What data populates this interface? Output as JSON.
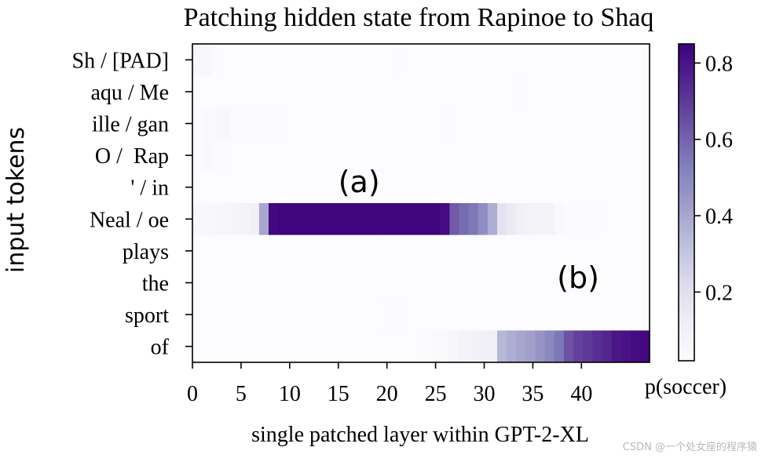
{
  "chart_data": {
    "type": "heatmap",
    "title": "Patching hidden state from Rapinoe to Shaq",
    "xlabel": "single patched layer within GPT-2-XL",
    "ylabel": "input tokens",
    "x_tick_labels": [
      "0",
      "5",
      "10",
      "15",
      "20",
      "25",
      "30",
      "35",
      "40"
    ],
    "x_ticks": [
      0,
      5,
      10,
      15,
      20,
      25,
      30,
      35,
      40
    ],
    "x_range": [
      0,
      47
    ],
    "rows": [
      "Sh / [PAD]",
      "aqu / Me",
      "ille / gan",
      "O /  Rap",
      "' / in",
      "Neal / oe",
      "plays",
      "the",
      "sport",
      "of"
    ],
    "colorbar": {
      "label": "p(soccer)",
      "tick_labels": [
        "0.2",
        "0.4",
        "0.6",
        "0.8"
      ],
      "ticks": [
        0.2,
        0.4,
        0.6,
        0.8
      ],
      "range": [
        0.02,
        0.85
      ],
      "colormap": "Purples",
      "color_low": "#fcfbfd",
      "color_high": "#3f007d"
    },
    "annotations": [
      {
        "text": "(a)",
        "layer": 17,
        "row": "Neal / oe"
      },
      {
        "text": "(b)",
        "layer": 40,
        "row": "sport"
      }
    ],
    "values": [
      [
        0.05,
        0.05,
        0.03,
        0.02,
        0.02,
        0.02,
        0.02,
        0.02,
        0.02,
        0.02,
        0.02,
        0.02,
        0.02,
        0.02,
        0.02,
        0.02,
        0.02,
        0.02,
        0.02,
        0.02,
        0.02,
        0.03,
        0.02,
        0.02,
        0.02,
        0.02,
        0.02,
        0.02,
        0.02,
        0.02,
        0.02,
        0.02,
        0.02,
        0.02,
        0.02,
        0.02,
        0.02,
        0.02,
        0.02,
        0.02,
        0.02,
        0.02,
        0.02,
        0.02,
        0.02,
        0.02,
        0.02,
        0.02
      ],
      [
        0.02,
        0.02,
        0.02,
        0.02,
        0.02,
        0.02,
        0.02,
        0.02,
        0.02,
        0.02,
        0.02,
        0.02,
        0.02,
        0.02,
        0.02,
        0.02,
        0.02,
        0.02,
        0.02,
        0.02,
        0.02,
        0.02,
        0.02,
        0.02,
        0.02,
        0.02,
        0.02,
        0.02,
        0.02,
        0.02,
        0.02,
        0.02,
        0.02,
        0.02,
        0.03,
        0.02,
        0.02,
        0.02,
        0.02,
        0.02,
        0.02,
        0.02,
        0.02,
        0.02,
        0.02,
        0.02,
        0.02,
        0.02
      ],
      [
        0.03,
        0.04,
        0.04,
        0.05,
        0.03,
        0.03,
        0.03,
        0.03,
        0.03,
        0.03,
        0.02,
        0.02,
        0.02,
        0.02,
        0.02,
        0.02,
        0.02,
        0.02,
        0.02,
        0.02,
        0.02,
        0.02,
        0.02,
        0.02,
        0.02,
        0.02,
        0.03,
        0.02,
        0.02,
        0.02,
        0.02,
        0.02,
        0.02,
        0.02,
        0.02,
        0.02,
        0.02,
        0.02,
        0.02,
        0.02,
        0.02,
        0.02,
        0.02,
        0.02,
        0.02,
        0.02,
        0.02,
        0.02
      ],
      [
        0.03,
        0.04,
        0.03,
        0.03,
        0.02,
        0.02,
        0.02,
        0.02,
        0.02,
        0.02,
        0.02,
        0.02,
        0.02,
        0.02,
        0.02,
        0.02,
        0.02,
        0.02,
        0.02,
        0.02,
        0.02,
        0.02,
        0.02,
        0.02,
        0.02,
        0.02,
        0.02,
        0.02,
        0.02,
        0.02,
        0.02,
        0.02,
        0.02,
        0.02,
        0.02,
        0.02,
        0.02,
        0.02,
        0.02,
        0.02,
        0.02,
        0.02,
        0.02,
        0.02,
        0.02,
        0.02,
        0.02,
        0.02
      ],
      [
        0.02,
        0.02,
        0.02,
        0.02,
        0.02,
        0.02,
        0.02,
        0.02,
        0.02,
        0.02,
        0.02,
        0.02,
        0.02,
        0.02,
        0.02,
        0.02,
        0.02,
        0.02,
        0.02,
        0.02,
        0.02,
        0.02,
        0.02,
        0.02,
        0.02,
        0.02,
        0.02,
        0.02,
        0.02,
        0.02,
        0.02,
        0.02,
        0.02,
        0.02,
        0.02,
        0.02,
        0.02,
        0.02,
        0.02,
        0.02,
        0.02,
        0.02,
        0.02,
        0.02,
        0.02,
        0.02,
        0.02,
        0.02
      ],
      [
        0.05,
        0.05,
        0.06,
        0.06,
        0.07,
        0.08,
        0.1,
        0.4,
        0.83,
        0.84,
        0.84,
        0.84,
        0.84,
        0.84,
        0.84,
        0.84,
        0.84,
        0.84,
        0.84,
        0.84,
        0.84,
        0.84,
        0.84,
        0.84,
        0.84,
        0.84,
        0.82,
        0.62,
        0.58,
        0.55,
        0.48,
        0.38,
        0.18,
        0.14,
        0.1,
        0.09,
        0.08,
        0.08,
        0.04,
        0.03,
        0.03,
        0.03,
        0.03,
        0.02,
        0.02,
        0.02,
        0.02,
        0.02
      ],
      [
        0.02,
        0.02,
        0.02,
        0.02,
        0.02,
        0.02,
        0.02,
        0.02,
        0.02,
        0.02,
        0.02,
        0.02,
        0.02,
        0.02,
        0.02,
        0.02,
        0.02,
        0.02,
        0.02,
        0.02,
        0.02,
        0.02,
        0.02,
        0.02,
        0.02,
        0.02,
        0.02,
        0.02,
        0.02,
        0.02,
        0.02,
        0.02,
        0.02,
        0.02,
        0.02,
        0.02,
        0.02,
        0.02,
        0.02,
        0.02,
        0.02,
        0.02,
        0.02,
        0.02,
        0.02,
        0.02,
        0.02,
        0.02
      ],
      [
        0.02,
        0.02,
        0.02,
        0.02,
        0.02,
        0.02,
        0.02,
        0.02,
        0.02,
        0.02,
        0.02,
        0.02,
        0.02,
        0.02,
        0.02,
        0.02,
        0.02,
        0.02,
        0.02,
        0.02,
        0.02,
        0.02,
        0.02,
        0.02,
        0.02,
        0.02,
        0.02,
        0.02,
        0.02,
        0.02,
        0.02,
        0.02,
        0.02,
        0.02,
        0.02,
        0.02,
        0.02,
        0.02,
        0.02,
        0.02,
        0.02,
        0.02,
        0.02,
        0.02,
        0.02,
        0.02,
        0.02,
        0.02
      ],
      [
        0.02,
        0.02,
        0.02,
        0.02,
        0.02,
        0.02,
        0.02,
        0.02,
        0.02,
        0.02,
        0.02,
        0.02,
        0.02,
        0.02,
        0.02,
        0.02,
        0.02,
        0.02,
        0.02,
        0.02,
        0.03,
        0.03,
        0.02,
        0.02,
        0.02,
        0.02,
        0.02,
        0.02,
        0.02,
        0.02,
        0.02,
        0.02,
        0.02,
        0.02,
        0.02,
        0.02,
        0.02,
        0.02,
        0.02,
        0.02,
        0.02,
        0.02,
        0.02,
        0.02,
        0.02,
        0.02,
        0.02,
        0.02
      ],
      [
        0.02,
        0.02,
        0.02,
        0.02,
        0.02,
        0.02,
        0.02,
        0.02,
        0.02,
        0.02,
        0.02,
        0.02,
        0.02,
        0.02,
        0.02,
        0.02,
        0.02,
        0.02,
        0.02,
        0.02,
        0.02,
        0.02,
        0.02,
        0.02,
        0.03,
        0.04,
        0.04,
        0.06,
        0.08,
        0.09,
        0.1,
        0.11,
        0.35,
        0.38,
        0.4,
        0.42,
        0.46,
        0.5,
        0.55,
        0.64,
        0.68,
        0.7,
        0.73,
        0.75,
        0.79,
        0.8,
        0.82,
        0.83
      ]
    ]
  },
  "watermark": "CSDN @一个处女座的程序猿"
}
